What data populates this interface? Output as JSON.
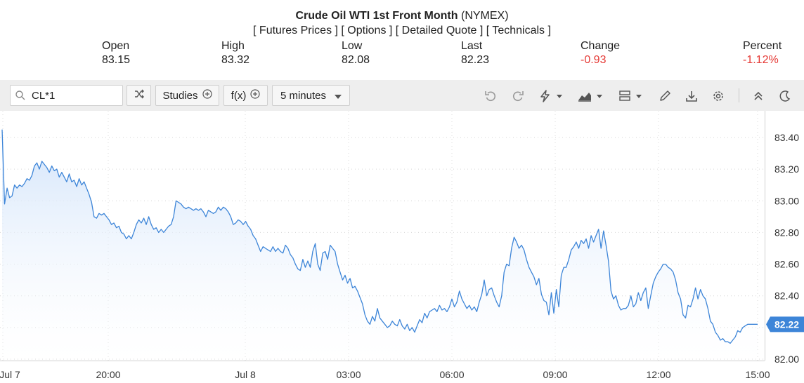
{
  "header": {
    "title_bold": "Crude Oil WTI 1st Front Month",
    "title_suffix": "(NYMEX)",
    "links": [
      "[ Futures Prices ]",
      "[ Options ]",
      "[ Detailed Quote ]",
      "[ Technicals ]"
    ]
  },
  "stats": {
    "open": {
      "label": "Open",
      "value": "83.15"
    },
    "high": {
      "label": "High",
      "value": "83.32"
    },
    "low": {
      "label": "Low",
      "value": "82.08"
    },
    "last": {
      "label": "Last",
      "value": "82.23"
    },
    "change": {
      "label": "Change",
      "value": "-0.93"
    },
    "percent": {
      "label": "Percent",
      "value": "-1.12%"
    }
  },
  "toolbar": {
    "symbol": "CL*1",
    "studies_label": "Studies",
    "fx_label": "f(x)",
    "interval_label": "5 minutes"
  },
  "colors": {
    "negative": "#e53935",
    "line": "#3d85d8",
    "area_top": "#cfe2fa",
    "badge": "#3d85d8"
  },
  "chart_data": {
    "type": "area",
    "x_tick_labels": [
      "Jul 7",
      "20:00",
      "Jul 8",
      "03:00",
      "06:00",
      "09:00",
      "12:00",
      "15:00"
    ],
    "y_tick_labels": [
      "83.40",
      "83.20",
      "83.00",
      "82.80",
      "82.60",
      "82.40",
      "82.20",
      "82.00"
    ],
    "ylim": [
      82.0,
      83.45
    ],
    "last_price_label": "82.22",
    "grid": true,
    "series": [
      {
        "values": [
          83.45,
          82.98,
          83.08,
          83.02,
          83.03,
          83.1,
          83.08,
          83.1,
          83.09,
          83.11,
          83.14,
          83.13,
          83.16,
          83.22,
          83.24,
          83.2,
          83.25,
          83.23,
          83.21,
          83.18,
          83.22,
          83.19,
          83.2,
          83.15,
          83.18,
          83.15,
          83.12,
          83.17,
          83.12,
          83.13,
          83.09,
          83.14,
          83.1,
          83.12,
          83.08,
          83.04,
          82.99,
          82.9,
          82.89,
          82.92,
          82.91,
          82.92,
          82.9,
          82.88,
          82.85,
          82.86,
          82.83,
          82.84,
          82.8,
          82.79,
          82.76,
          82.78,
          82.76,
          82.8,
          82.85,
          82.88,
          82.86,
          82.89,
          82.85,
          82.9,
          82.85,
          82.82,
          82.83,
          82.8,
          82.82,
          82.8,
          82.82,
          82.84,
          82.85,
          82.9,
          83.0,
          82.99,
          82.98,
          82.96,
          82.95,
          82.96,
          82.95,
          82.94,
          82.95,
          82.94,
          82.95,
          82.93,
          82.9,
          82.94,
          82.93,
          82.92,
          82.93,
          82.96,
          82.94,
          82.96,
          82.95,
          82.93,
          82.9,
          82.85,
          82.86,
          82.88,
          82.87,
          82.85,
          82.87,
          82.84,
          82.82,
          82.78,
          82.76,
          82.72,
          82.68,
          82.71,
          82.7,
          82.69,
          82.68,
          82.71,
          82.68,
          82.7,
          82.68,
          82.67,
          82.72,
          82.7,
          82.66,
          82.64,
          82.6,
          82.57,
          82.56,
          82.63,
          82.58,
          82.62,
          82.58,
          82.68,
          82.73,
          82.6,
          82.56,
          82.67,
          82.68,
          82.63,
          82.72,
          82.7,
          82.68,
          82.6,
          82.55,
          82.5,
          82.53,
          82.48,
          82.51,
          82.45,
          82.46,
          82.43,
          82.39,
          82.35,
          82.28,
          82.24,
          82.22,
          82.27,
          82.24,
          82.32,
          82.26,
          82.24,
          82.22,
          82.2,
          82.21,
          82.24,
          82.22,
          82.21,
          82.25,
          82.21,
          82.19,
          82.22,
          82.18,
          82.2,
          82.17,
          82.21,
          82.25,
          82.23,
          82.29,
          82.26,
          82.3,
          82.31,
          82.32,
          82.3,
          82.34,
          82.31,
          82.32,
          82.3,
          82.33,
          82.38,
          82.33,
          82.36,
          82.43,
          82.38,
          82.35,
          82.32,
          82.34,
          82.31,
          82.33,
          82.3,
          82.36,
          82.41,
          82.5,
          82.4,
          82.44,
          82.45,
          82.4,
          82.36,
          82.33,
          82.4,
          82.55,
          82.6,
          82.59,
          82.7,
          82.77,
          82.74,
          82.7,
          82.72,
          82.69,
          82.63,
          82.58,
          82.55,
          82.52,
          82.47,
          82.51,
          82.41,
          82.37,
          82.36,
          82.28,
          82.42,
          82.29,
          82.44,
          82.33,
          82.53,
          82.58,
          82.58,
          82.63,
          82.69,
          82.71,
          82.74,
          82.7,
          82.75,
          82.73,
          82.76,
          82.7,
          82.78,
          82.74,
          82.78,
          82.82,
          82.7,
          82.81,
          82.72,
          82.62,
          82.43,
          82.38,
          82.4,
          82.34,
          82.31,
          82.32,
          82.32,
          82.34,
          82.4,
          82.33,
          82.35,
          82.42,
          82.37,
          82.42,
          82.45,
          82.32,
          82.4,
          82.48,
          82.52,
          82.55,
          82.57,
          82.6,
          82.6,
          82.58,
          82.57,
          82.55,
          82.5,
          82.42,
          82.38,
          82.28,
          82.26,
          82.34,
          82.33,
          82.38,
          82.45,
          82.38,
          82.44,
          82.4,
          82.38,
          82.32,
          82.24,
          82.22,
          82.17,
          82.15,
          82.12,
          82.13,
          82.11,
          82.11,
          82.1,
          82.12,
          82.14,
          82.18,
          82.17,
          82.2,
          82.21,
          82.22,
          82.22,
          82.22,
          82.22,
          82.22
        ]
      }
    ]
  }
}
